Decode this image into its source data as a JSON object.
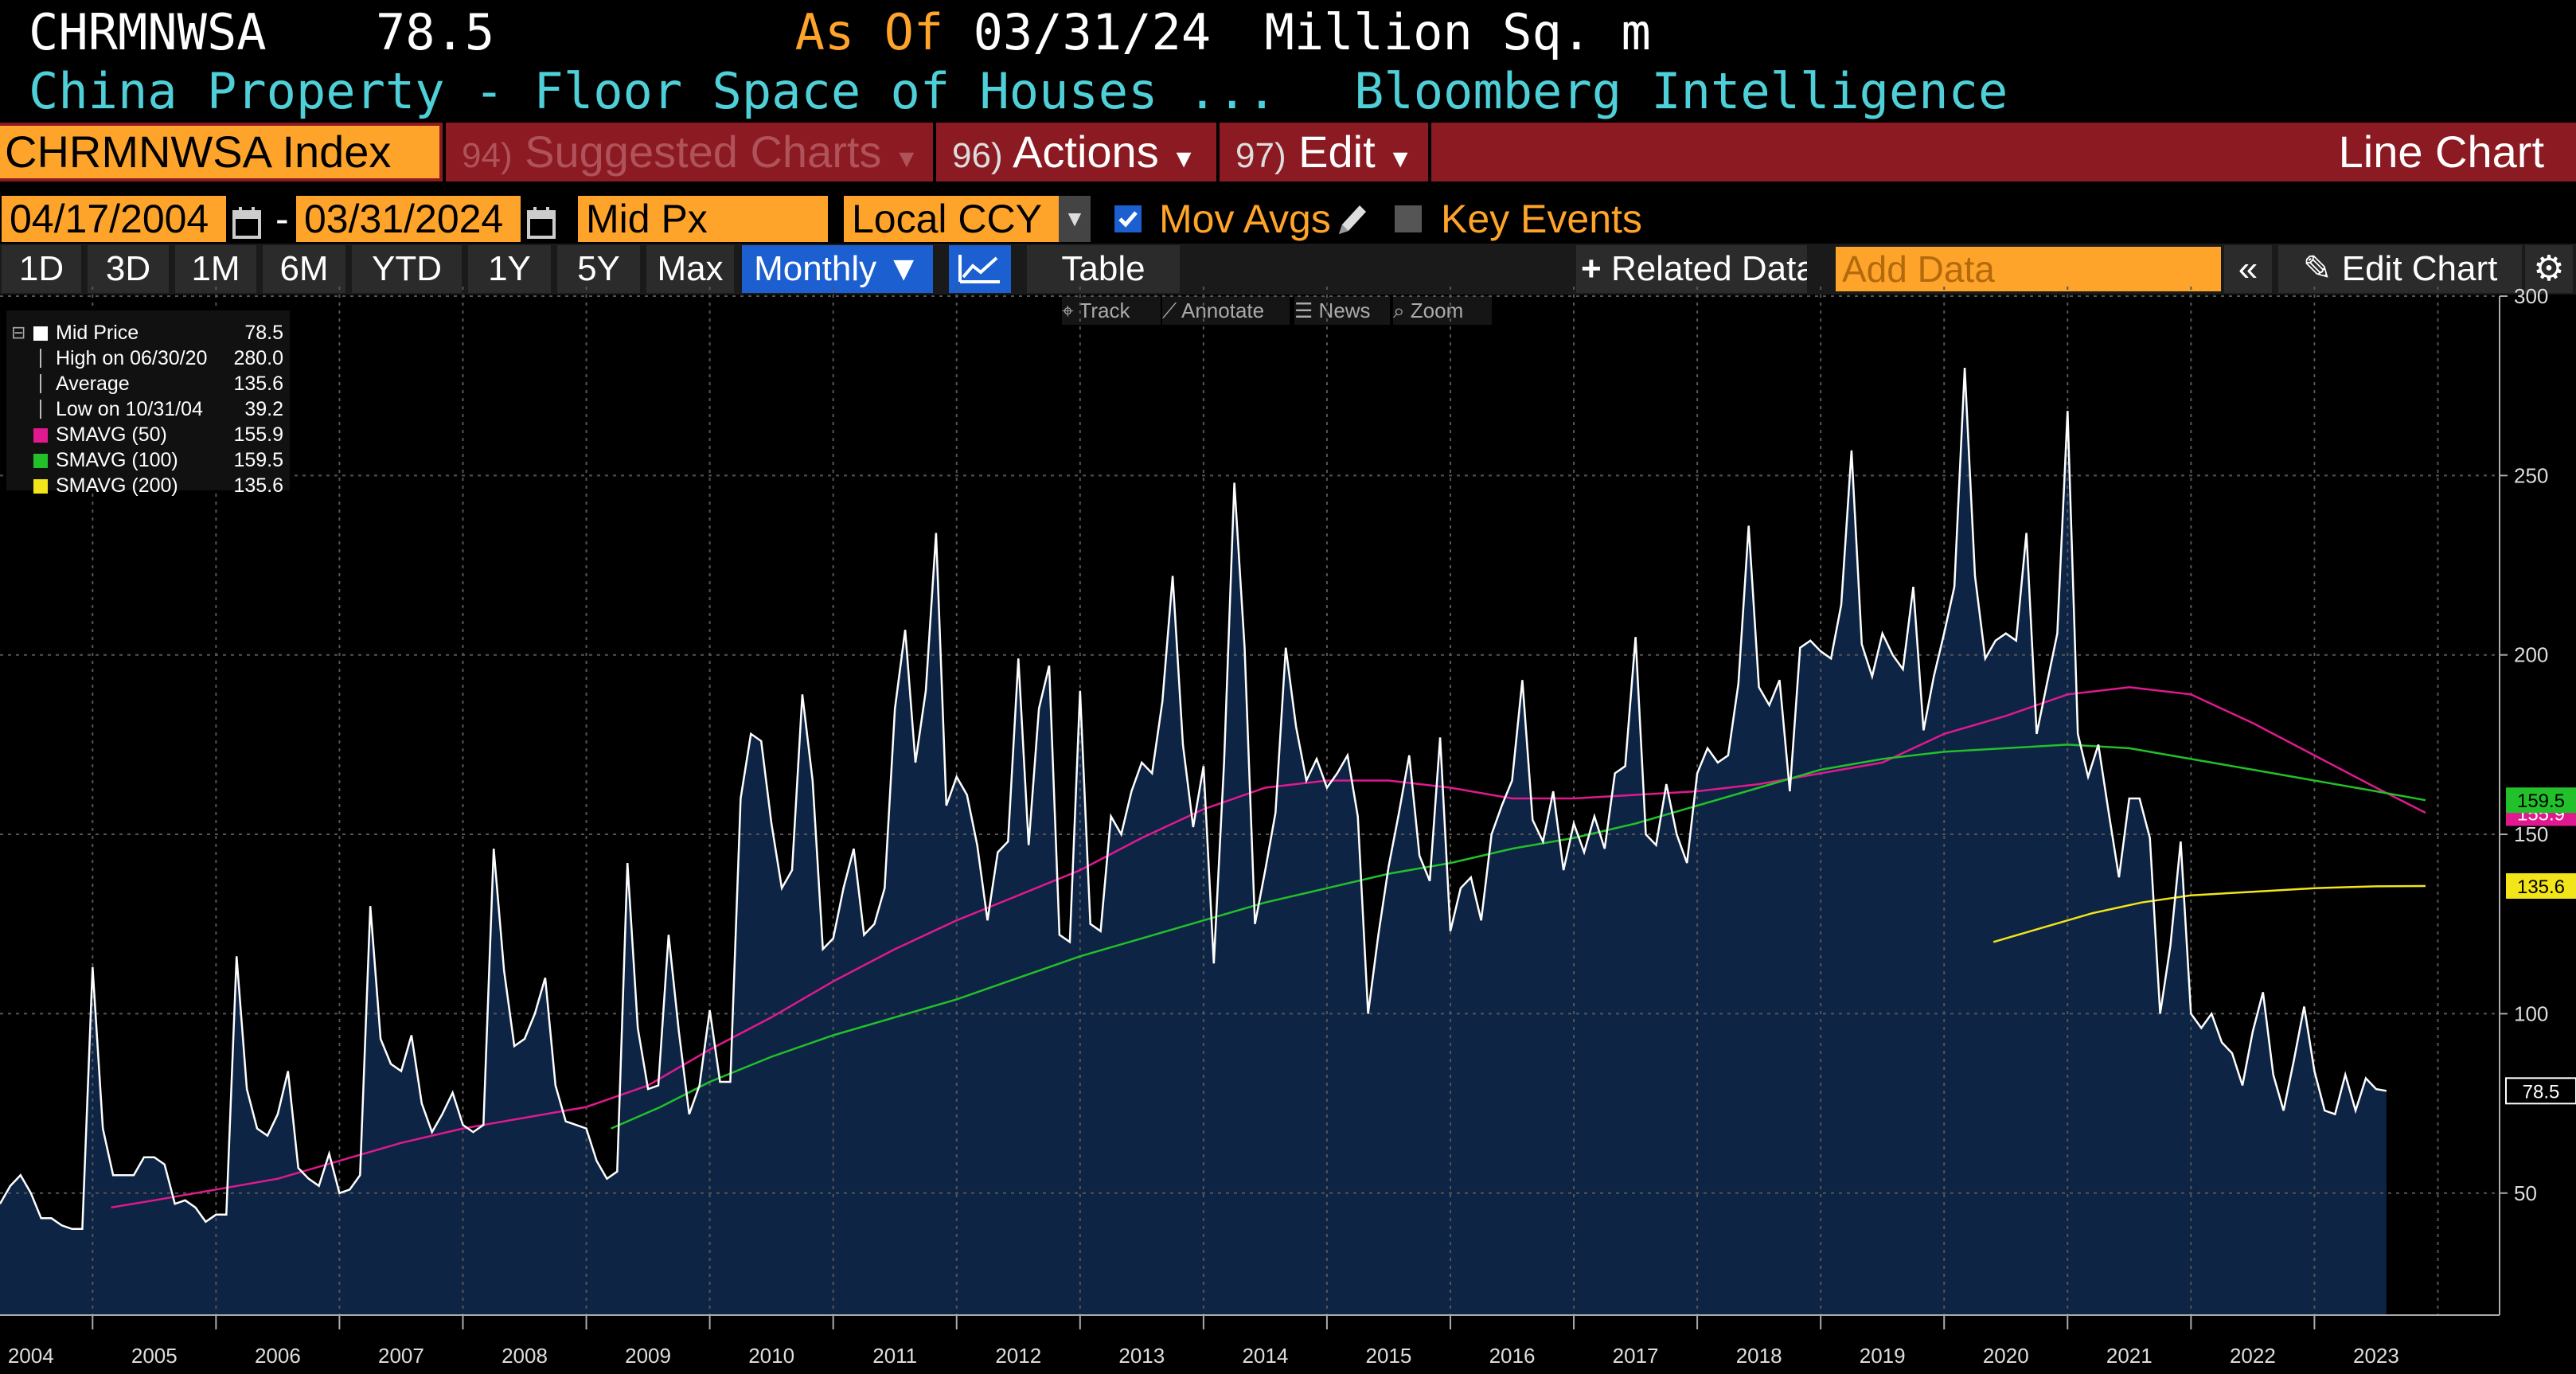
{
  "header": {
    "ticker": "CHRMNWSA",
    "last_value": "78.5",
    "as_of_label": "As Of",
    "as_of_date": "03/31/24",
    "units": "Million Sq. m",
    "description": "China Property - Floor Space of Houses ...",
    "source": "Bloomberg Intelligence"
  },
  "toolbar": {
    "security": "CHRMNWSA Index",
    "suggested": {
      "num": "94)",
      "label": "Suggested Charts"
    },
    "actions": {
      "num": "96)",
      "label": "Actions"
    },
    "edit": {
      "num": "97)",
      "label": "Edit"
    },
    "chart_type": "Line Chart"
  },
  "controls": {
    "start_date": "04/17/2004",
    "dash": "-",
    "end_date": "03/31/2024",
    "price_field": "Mid Px",
    "currency": "Local CCY",
    "mov_avgs": "Mov Avgs",
    "key_events": "Key Events"
  },
  "periods": [
    "1D",
    "3D",
    "1M",
    "6M",
    "YTD",
    "1Y",
    "5Y",
    "Max"
  ],
  "frequency": "Monthly ▼",
  "table_label": "Table",
  "related_data": "Related Data",
  "add_data_placeholder": "Add Data",
  "edit_chart": "Edit Chart",
  "mini_tools": [
    "Track",
    "Annotate",
    "News",
    "Zoom"
  ],
  "legend": [
    {
      "label": "Mid Price",
      "value": "78.5",
      "color": "#ffffff"
    },
    {
      "label": "High on 06/30/20",
      "value": "280.0",
      "color": ""
    },
    {
      "label": "Average",
      "value": "135.6",
      "color": ""
    },
    {
      "label": "Low on 10/31/04",
      "value": "39.2",
      "color": ""
    },
    {
      "label": "SMAVG (50)",
      "value": "155.9",
      "color": "#e0198f"
    },
    {
      "label": "SMAVG (100)",
      "value": "159.5",
      "color": "#22c02a"
    },
    {
      "label": "SMAVG (200)",
      "value": "135.6",
      "color": "#f2e51a"
    }
  ],
  "chart_data": {
    "type": "line",
    "title": "China Property - Floor Space of Houses ...",
    "ylabel": "",
    "xlabel": "",
    "ylim": [
      16,
      300
    ],
    "yticks": [
      50,
      100,
      150,
      200,
      250,
      300
    ],
    "x_tick_labels": [
      "2004",
      "2005",
      "2006",
      "2007",
      "2008",
      "2009",
      "2010",
      "2011",
      "2012",
      "2013",
      "2014",
      "2015",
      "2016",
      "2017",
      "2018",
      "2019",
      "2020",
      "2021",
      "2022",
      "2023"
    ],
    "x_range": [
      2004.25,
      2024.5
    ],
    "grid": true,
    "colors": {
      "price": "#ffffff",
      "fill": "#0e2444",
      "sma50": "#e0198f",
      "sma100": "#22c02a",
      "sma200": "#f2e51a"
    },
    "series": [
      {
        "name": "Mid Price",
        "start": "2004-04",
        "values": [
          47,
          52,
          55,
          50,
          43,
          43,
          41,
          40,
          40,
          113,
          68,
          55,
          55,
          55,
          60,
          60,
          58,
          47,
          48,
          46,
          42,
          44,
          44,
          116,
          79,
          68,
          66,
          72,
          84,
          57,
          54,
          52,
          61,
          50,
          51,
          55,
          130,
          93,
          86,
          84,
          94,
          75,
          67,
          72,
          78,
          69,
          67,
          69,
          146,
          112,
          91,
          93,
          100,
          110,
          80,
          70,
          69,
          68,
          59,
          54,
          56,
          142,
          96,
          79,
          80,
          122,
          95,
          72,
          80,
          101,
          81,
          81,
          160,
          178,
          176,
          153,
          135,
          140,
          189,
          165,
          118,
          121,
          135,
          146,
          122,
          125,
          135,
          185,
          207,
          170,
          190,
          234,
          158,
          166,
          161,
          147,
          126,
          145,
          148,
          199,
          147,
          185,
          197,
          122,
          120,
          190,
          125,
          123,
          155,
          150,
          162,
          170,
          167,
          187,
          222,
          175,
          152,
          169,
          114,
          170,
          248,
          202,
          125,
          140,
          156,
          202,
          180,
          165,
          171,
          163,
          167,
          172,
          155,
          100,
          122,
          141,
          156,
          172,
          144,
          137,
          177,
          123,
          135,
          138,
          126,
          150,
          158,
          165,
          193,
          154,
          148,
          162,
          140,
          153,
          145,
          155,
          146,
          167,
          169,
          205,
          150,
          147,
          164,
          150,
          142,
          167,
          174,
          170,
          172,
          192,
          236,
          191,
          186,
          193,
          162,
          202,
          204,
          201,
          199,
          214,
          257,
          203,
          194,
          206,
          200,
          196,
          219,
          179,
          194,
          206,
          219,
          280,
          222,
          199,
          204,
          206,
          204,
          234,
          178,
          192,
          206,
          268,
          178,
          166,
          175,
          156,
          138,
          160,
          160,
          149,
          100,
          119,
          148,
          100,
          96,
          100,
          92,
          89,
          80,
          95,
          106,
          83,
          73,
          87,
          102,
          84,
          73,
          72,
          83,
          73,
          82,
          79,
          78.5
        ]
      },
      {
        "name": "SMAVG (50)",
        "points": [
          [
            2005.15,
            46
          ],
          [
            2005.5,
            48
          ],
          [
            2006,
            51
          ],
          [
            2006.5,
            54
          ],
          [
            2007,
            59
          ],
          [
            2007.5,
            64
          ],
          [
            2008,
            68
          ],
          [
            2008.5,
            71
          ],
          [
            2009,
            74
          ],
          [
            2009.5,
            80
          ],
          [
            2010,
            90
          ],
          [
            2010.5,
            99
          ],
          [
            2011,
            109
          ],
          [
            2011.5,
            118
          ],
          [
            2012,
            126
          ],
          [
            2012.5,
            133
          ],
          [
            2013,
            140
          ],
          [
            2013.5,
            149
          ],
          [
            2014,
            157
          ],
          [
            2014.5,
            163
          ],
          [
            2015,
            165
          ],
          [
            2015.5,
            165
          ],
          [
            2016,
            163
          ],
          [
            2016.5,
            160
          ],
          [
            2017,
            160
          ],
          [
            2017.5,
            161
          ],
          [
            2018,
            162
          ],
          [
            2018.5,
            164
          ],
          [
            2019,
            167
          ],
          [
            2019.5,
            170
          ],
          [
            2020,
            178
          ],
          [
            2020.5,
            183
          ],
          [
            2021,
            189
          ],
          [
            2021.5,
            191
          ],
          [
            2022,
            189
          ],
          [
            2022.5,
            181
          ],
          [
            2023,
            172
          ],
          [
            2023.5,
            163
          ],
          [
            2023.9,
            156
          ]
        ]
      },
      {
        "name": "SMAVG (100)",
        "points": [
          [
            2009.2,
            68
          ],
          [
            2009.6,
            74
          ],
          [
            2010,
            81
          ],
          [
            2010.5,
            88
          ],
          [
            2011,
            94
          ],
          [
            2011.5,
            99
          ],
          [
            2012,
            104
          ],
          [
            2012.5,
            110
          ],
          [
            2013,
            116
          ],
          [
            2013.5,
            121
          ],
          [
            2014,
            126
          ],
          [
            2014.5,
            131
          ],
          [
            2015,
            135
          ],
          [
            2015.5,
            139
          ],
          [
            2016,
            142
          ],
          [
            2016.5,
            146
          ],
          [
            2017,
            149
          ],
          [
            2017.5,
            153
          ],
          [
            2018,
            158
          ],
          [
            2018.5,
            163
          ],
          [
            2019,
            168
          ],
          [
            2019.5,
            171
          ],
          [
            2020,
            173
          ],
          [
            2020.5,
            174
          ],
          [
            2021,
            175
          ],
          [
            2021.5,
            174
          ],
          [
            2022,
            171
          ],
          [
            2022.5,
            168
          ],
          [
            2023,
            165
          ],
          [
            2023.5,
            162
          ],
          [
            2023.9,
            159.5
          ]
        ]
      },
      {
        "name": "SMAVG (200)",
        "points": [
          [
            2020.4,
            120
          ],
          [
            2020.8,
            124
          ],
          [
            2021.2,
            128
          ],
          [
            2021.6,
            131
          ],
          [
            2022,
            133
          ],
          [
            2022.5,
            134
          ],
          [
            2023,
            135
          ],
          [
            2023.5,
            135.5
          ],
          [
            2023.9,
            135.6
          ]
        ]
      }
    ],
    "end_labels": [
      {
        "value": "155.9",
        "color": "#e0198f",
        "y": 155.9
      },
      {
        "value": "159.5",
        "color": "#22c02a",
        "y": 159.5
      },
      {
        "value": "135.6",
        "color": "#f2e51a",
        "y": 135.6
      },
      {
        "value": "78.5",
        "color": "#ffffff",
        "y": 78.5
      }
    ]
  }
}
